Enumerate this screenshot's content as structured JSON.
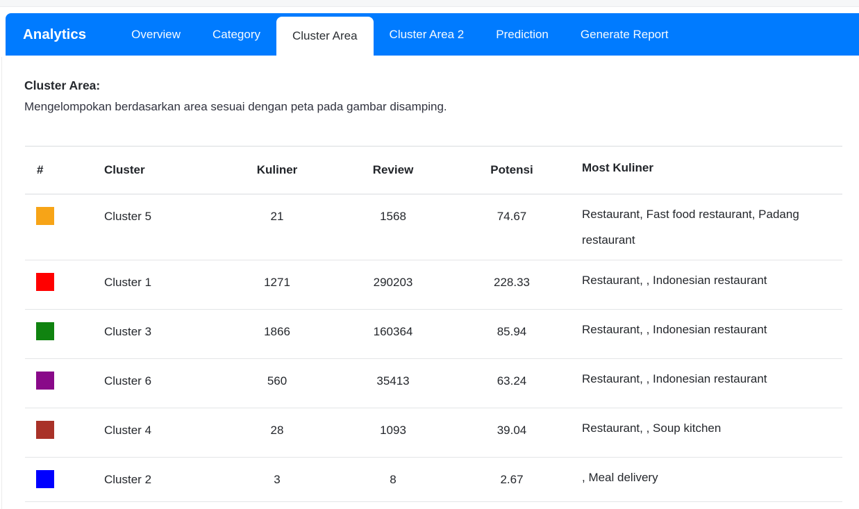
{
  "navbar": {
    "brand": "Analytics",
    "accent_color": "#007bff",
    "tabs": [
      {
        "label": "Overview",
        "active": false
      },
      {
        "label": "Category",
        "active": false
      },
      {
        "label": "Cluster Area",
        "active": true
      },
      {
        "label": "Cluster Area 2",
        "active": false
      },
      {
        "label": "Prediction",
        "active": false
      },
      {
        "label": "Generate Report",
        "active": false
      }
    ]
  },
  "section": {
    "title": "Cluster Area:",
    "description": "Mengelompokan berdasarkan area sesuai dengan peta pada gambar disamping."
  },
  "table": {
    "columns": [
      "#",
      "Cluster",
      "Kuliner",
      "Review",
      "Potensi",
      "Most Kuliner"
    ],
    "rows": [
      {
        "color": "#F7A417",
        "color_name": "orange",
        "cluster": "Cluster 5",
        "kuliner": "21",
        "review": "1568",
        "potensi": "74.67",
        "most_kuliner": "Restaurant, Fast food restaurant, Padang restaurant"
      },
      {
        "color": "#FF0000",
        "color_name": "red",
        "cluster": "Cluster 1",
        "kuliner": "1271",
        "review": "290203",
        "potensi": "228.33",
        "most_kuliner": "Restaurant, , Indonesian restaurant"
      },
      {
        "color": "#108310",
        "color_name": "green",
        "cluster": "Cluster 3",
        "kuliner": "1866",
        "review": "160364",
        "potensi": "85.94",
        "most_kuliner": "Restaurant, , Indonesian restaurant"
      },
      {
        "color": "#890989",
        "color_name": "purple",
        "cluster": "Cluster 6",
        "kuliner": "560",
        "review": "35413",
        "potensi": "63.24",
        "most_kuliner": "Restaurant, , Indonesian restaurant"
      },
      {
        "color": "#A93228",
        "color_name": "brown",
        "cluster": "Cluster 4",
        "kuliner": "28",
        "review": "1093",
        "potensi": "39.04",
        "most_kuliner": "Restaurant, , Soup kitchen"
      },
      {
        "color": "#0000FF",
        "color_name": "blue",
        "cluster": "Cluster 2",
        "kuliner": "3",
        "review": "8",
        "potensi": "2.67",
        "most_kuliner": ", Meal delivery"
      }
    ]
  }
}
